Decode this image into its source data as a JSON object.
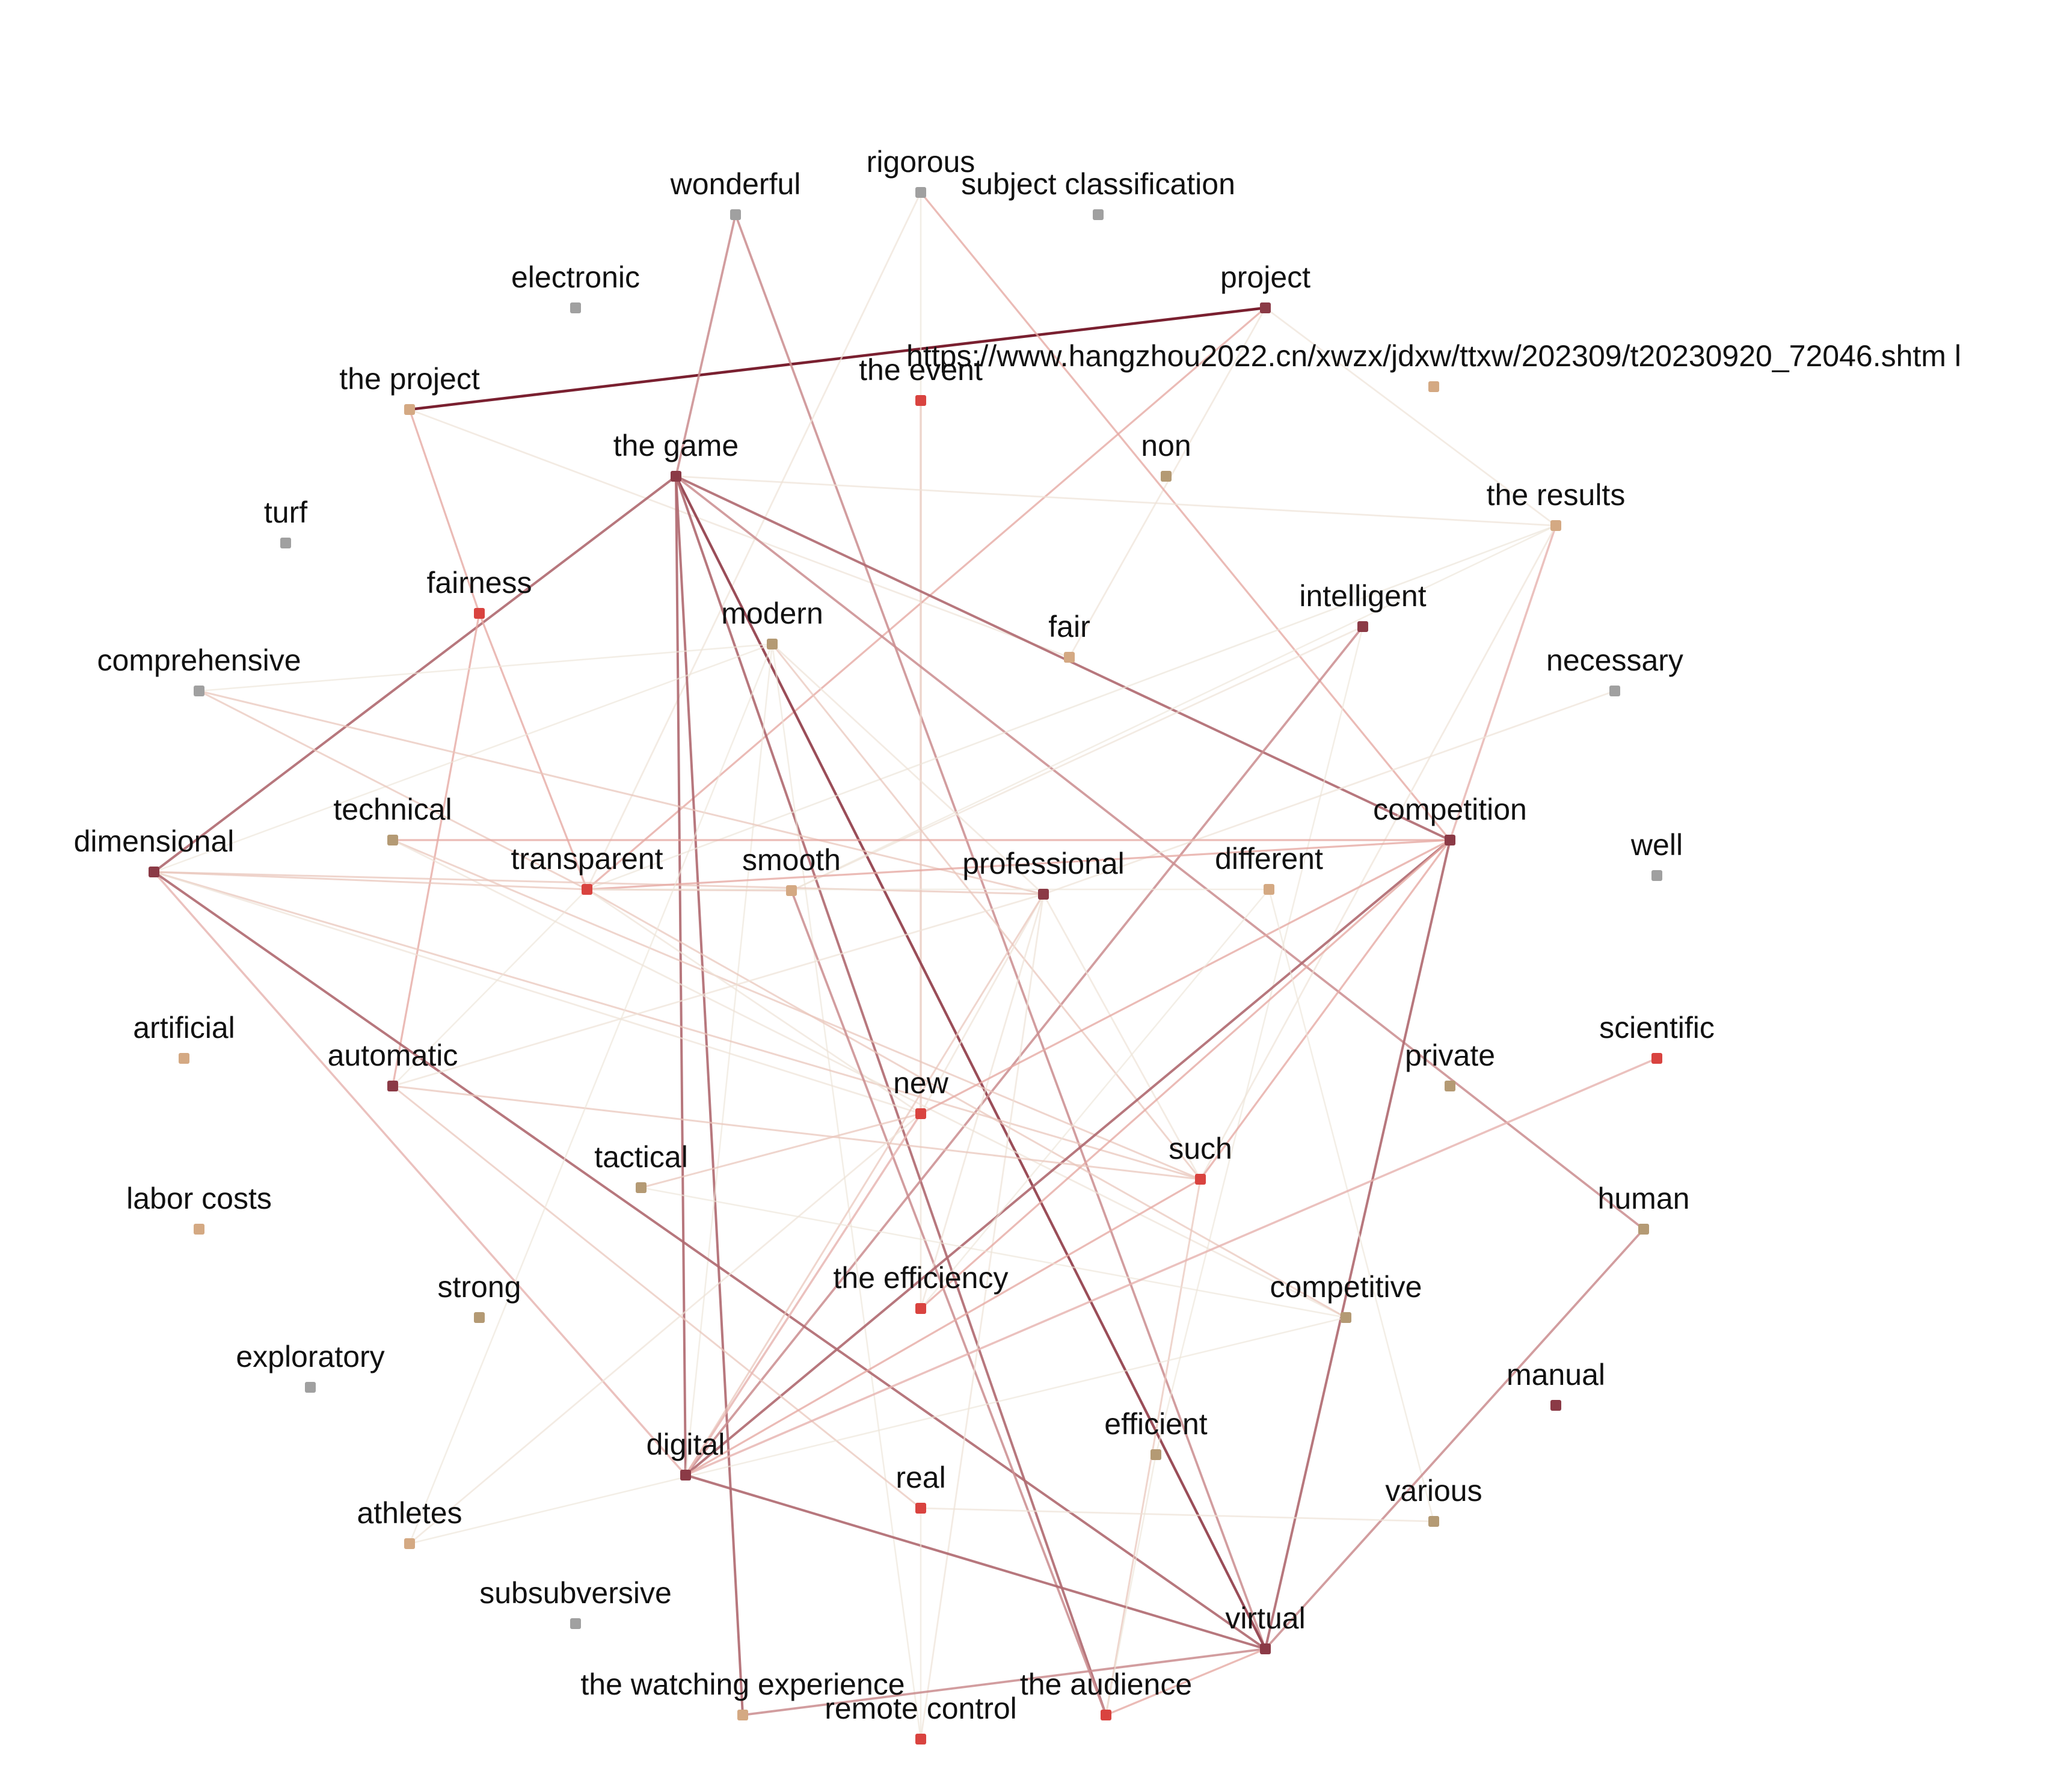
{
  "colors": {
    "dark": "#8b3a46",
    "red": "#d9433f",
    "tan": "#b49a74",
    "peach": "#d4a983",
    "gray": "#a0a0a0"
  },
  "nodes": [
    {
      "id": "wonderful",
      "label": "wonderful",
      "color": "gray"
    },
    {
      "id": "rigorous",
      "label": "rigorous",
      "color": "gray"
    },
    {
      "id": "subject_classification",
      "label": "subject classification",
      "color": "gray"
    },
    {
      "id": "electronic",
      "label": "electronic",
      "color": "gray"
    },
    {
      "id": "project",
      "label": "project",
      "color": "dark"
    },
    {
      "id": "the_event",
      "label": "the event",
      "color": "red"
    },
    {
      "id": "url",
      "label": "https://www.hangzhou2022.cn/xwzx/jdxw/ttxw/202309/t20230920_72046.shtm l",
      "color": "peach"
    },
    {
      "id": "the_project",
      "label": "the project",
      "color": "peach"
    },
    {
      "id": "the_game",
      "label": "the game",
      "color": "dark"
    },
    {
      "id": "non",
      "label": "non",
      "color": "tan"
    },
    {
      "id": "the_results",
      "label": "the results",
      "color": "peach"
    },
    {
      "id": "turf",
      "label": "turf",
      "color": "gray"
    },
    {
      "id": "fairness",
      "label": "fairness",
      "color": "red"
    },
    {
      "id": "intelligent",
      "label": "intelligent",
      "color": "dark"
    },
    {
      "id": "modern",
      "label": "modern",
      "color": "tan"
    },
    {
      "id": "fair",
      "label": "fair",
      "color": "peach"
    },
    {
      "id": "comprehensive",
      "label": "comprehensive",
      "color": "gray"
    },
    {
      "id": "necessary",
      "label": "necessary",
      "color": "gray"
    },
    {
      "id": "dimensional",
      "label": "dimensional",
      "color": "dark"
    },
    {
      "id": "technical",
      "label": "technical",
      "color": "tan"
    },
    {
      "id": "transparent",
      "label": "transparent",
      "color": "red"
    },
    {
      "id": "smooth",
      "label": "smooth",
      "color": "peach"
    },
    {
      "id": "professional",
      "label": "professional",
      "color": "dark"
    },
    {
      "id": "different",
      "label": "different",
      "color": "peach"
    },
    {
      "id": "competition",
      "label": "competition",
      "color": "dark"
    },
    {
      "id": "well",
      "label": "well",
      "color": "gray"
    },
    {
      "id": "artificial",
      "label": "artificial",
      "color": "peach"
    },
    {
      "id": "automatic",
      "label": "automatic",
      "color": "dark"
    },
    {
      "id": "new",
      "label": "new",
      "color": "red"
    },
    {
      "id": "private",
      "label": "private",
      "color": "tan"
    },
    {
      "id": "scientific",
      "label": "scientific",
      "color": "red"
    },
    {
      "id": "such",
      "label": "such",
      "color": "red"
    },
    {
      "id": "tactical",
      "label": "tactical",
      "color": "tan"
    },
    {
      "id": "labor_costs",
      "label": "labor costs",
      "color": "peach"
    },
    {
      "id": "human",
      "label": "human",
      "color": "tan"
    },
    {
      "id": "the_efficiency",
      "label": "the efficiency",
      "color": "red"
    },
    {
      "id": "strong",
      "label": "strong",
      "color": "tan"
    },
    {
      "id": "competitive",
      "label": "competitive",
      "color": "tan"
    },
    {
      "id": "exploratory",
      "label": "exploratory",
      "color": "gray"
    },
    {
      "id": "manual",
      "label": "manual",
      "color": "dark"
    },
    {
      "id": "efficient",
      "label": "efficient",
      "color": "tan"
    },
    {
      "id": "digital",
      "label": "digital",
      "color": "dark"
    },
    {
      "id": "real",
      "label": "real",
      "color": "red"
    },
    {
      "id": "various",
      "label": "various",
      "color": "tan"
    },
    {
      "id": "athletes",
      "label": "athletes",
      "color": "peach"
    },
    {
      "id": "subsubversive",
      "label": "subsubversive",
      "color": "gray"
    },
    {
      "id": "virtual",
      "label": "virtual",
      "color": "dark"
    },
    {
      "id": "the_watching_experience",
      "label": "the watching experience",
      "color": "peach"
    },
    {
      "id": "the_audience",
      "label": "the audience",
      "color": "red"
    },
    {
      "id": "remote_control",
      "label": "remote control",
      "color": "red"
    }
  ],
  "edges": [
    {
      "s": "project",
      "t": "the_project",
      "w": 1.0
    },
    {
      "s": "the_project",
      "t": "fairness",
      "w": 0.5
    },
    {
      "s": "the_project",
      "t": "fair",
      "w": 0.3
    },
    {
      "s": "project",
      "t": "the_results",
      "w": 0.3
    },
    {
      "s": "project",
      "t": "transparent",
      "w": 0.5
    },
    {
      "s": "project",
      "t": "fair",
      "w": 0.3
    },
    {
      "s": "wonderful",
      "t": "the_game",
      "w": 0.7
    },
    {
      "s": "wonderful",
      "t": "virtual",
      "w": 0.7
    },
    {
      "s": "rigorous",
      "t": "competition",
      "w": 0.5
    },
    {
      "s": "rigorous",
      "t": "the_event",
      "w": 0.25
    },
    {
      "s": "rigorous",
      "t": "transparent",
      "w": 0.3
    },
    {
      "s": "the_event",
      "t": "new",
      "w": 0.5
    },
    {
      "s": "the_event",
      "t": "the_efficiency",
      "w": 0.3
    },
    {
      "s": "the_game",
      "t": "the_results",
      "w": 0.3
    },
    {
      "s": "the_game",
      "t": "dimensional",
      "w": 0.8
    },
    {
      "s": "the_game",
      "t": "competition",
      "w": 0.8
    },
    {
      "s": "the_game",
      "t": "digital",
      "w": 0.8
    },
    {
      "s": "the_game",
      "t": "the_watching_experience",
      "w": 0.8
    },
    {
      "s": "the_game",
      "t": "virtual",
      "w": 0.9
    },
    {
      "s": "the_game",
      "t": "the_audience",
      "w": 0.8
    },
    {
      "s": "the_game",
      "t": "human",
      "w": 0.7
    },
    {
      "s": "fairness",
      "t": "transparent",
      "w": 0.5
    },
    {
      "s": "fairness",
      "t": "automatic",
      "w": 0.5
    },
    {
      "s": "the_results",
      "t": "transparent",
      "w": 0.25
    },
    {
      "s": "the_results",
      "t": "competition",
      "w": 0.6
    },
    {
      "s": "the_results",
      "t": "such",
      "w": 0.3
    },
    {
      "s": "the_results",
      "t": "smooth",
      "w": 0.2
    },
    {
      "s": "intelligent",
      "t": "digital",
      "w": 0.7
    },
    {
      "s": "intelligent",
      "t": "efficient",
      "w": 0.2
    },
    {
      "s": "intelligent",
      "t": "smooth",
      "w": 0.3
    },
    {
      "s": "modern",
      "t": "comprehensive",
      "w": 0.2
    },
    {
      "s": "modern",
      "t": "dimensional",
      "w": 0.2
    },
    {
      "s": "modern",
      "t": "such",
      "w": 0.4
    },
    {
      "s": "modern",
      "t": "digital",
      "w": 0.2
    },
    {
      "s": "modern",
      "t": "professional",
      "w": 0.3
    },
    {
      "s": "modern",
      "t": "remote_control",
      "w": 0.2
    },
    {
      "s": "comprehensive",
      "t": "transparent",
      "w": 0.4
    },
    {
      "s": "comprehensive",
      "t": "professional",
      "w": 0.4
    },
    {
      "s": "necessary",
      "t": "professional",
      "w": 0.3
    },
    {
      "s": "technical",
      "t": "competition",
      "w": 0.5
    },
    {
      "s": "technical",
      "t": "such",
      "w": 0.4
    },
    {
      "s": "technical",
      "t": "competitive",
      "w": 0.3
    },
    {
      "s": "dimensional",
      "t": "transparent",
      "w": 0.4
    },
    {
      "s": "dimensional",
      "t": "professional",
      "w": 0.4
    },
    {
      "s": "dimensional",
      "t": "such",
      "w": 0.4
    },
    {
      "s": "dimensional",
      "t": "digital",
      "w": 0.6
    },
    {
      "s": "dimensional",
      "t": "virtual",
      "w": 0.8
    },
    {
      "s": "dimensional",
      "t": "new",
      "w": 0.3
    },
    {
      "s": "transparent",
      "t": "competition",
      "w": 0.5
    },
    {
      "s": "transparent",
      "t": "smooth",
      "w": 0.4
    },
    {
      "s": "transparent",
      "t": "different",
      "w": 0.2
    },
    {
      "s": "transparent",
      "t": "automatic",
      "w": 0.2
    },
    {
      "s": "transparent",
      "t": "competitive",
      "w": 0.4
    },
    {
      "s": "transparent",
      "t": "new",
      "w": 0.3
    },
    {
      "s": "smooth",
      "t": "the_audience",
      "w": 0.7
    },
    {
      "s": "professional",
      "t": "automatic",
      "w": 0.3
    },
    {
      "s": "professional",
      "t": "new",
      "w": 0.3
    },
    {
      "s": "professional",
      "t": "the_efficiency",
      "w": 0.3
    },
    {
      "s": "professional",
      "t": "such",
      "w": 0.3
    },
    {
      "s": "professional",
      "t": "remote_control",
      "w": 0.3
    },
    {
      "s": "professional",
      "t": "digital",
      "w": 0.4
    },
    {
      "s": "competition",
      "t": "digital",
      "w": 0.8
    },
    {
      "s": "competition",
      "t": "virtual",
      "w": 0.8
    },
    {
      "s": "competition",
      "t": "such",
      "w": 0.5
    },
    {
      "s": "competition",
      "t": "the_efficiency",
      "w": 0.5
    },
    {
      "s": "competition",
      "t": "new",
      "w": 0.5
    },
    {
      "s": "different",
      "t": "various",
      "w": 0.2
    },
    {
      "s": "different",
      "t": "the_efficiency",
      "w": 0.2
    },
    {
      "s": "automatic",
      "t": "such",
      "w": 0.4
    },
    {
      "s": "automatic",
      "t": "real",
      "w": 0.4
    },
    {
      "s": "new",
      "t": "tactical",
      "w": 0.4
    },
    {
      "s": "new",
      "t": "digital",
      "w": 0.6
    },
    {
      "s": "new",
      "t": "athletes",
      "w": 0.3
    },
    {
      "s": "such",
      "t": "the_audience",
      "w": 0.4
    },
    {
      "s": "such",
      "t": "digital",
      "w": 0.5
    },
    {
      "s": "tactical",
      "t": "competitive",
      "w": 0.2
    },
    {
      "s": "scientific",
      "t": "digital",
      "w": 0.6
    },
    {
      "s": "human",
      "t": "virtual",
      "w": 0.7
    },
    {
      "s": "competitive",
      "t": "athletes",
      "w": 0.2
    },
    {
      "s": "digital",
      "t": "virtual",
      "w": 0.8
    },
    {
      "s": "real",
      "t": "various",
      "w": 0.3
    },
    {
      "s": "real",
      "t": "remote_control",
      "w": 0.2
    },
    {
      "s": "virtual",
      "t": "the_watching_experience",
      "w": 0.7
    },
    {
      "s": "virtual",
      "t": "the_audience",
      "w": 0.5
    },
    {
      "s": "athletes",
      "t": "modern",
      "w": 0.2
    },
    {
      "s": "efficient",
      "t": "the_audience",
      "w": 0.2
    }
  ]
}
